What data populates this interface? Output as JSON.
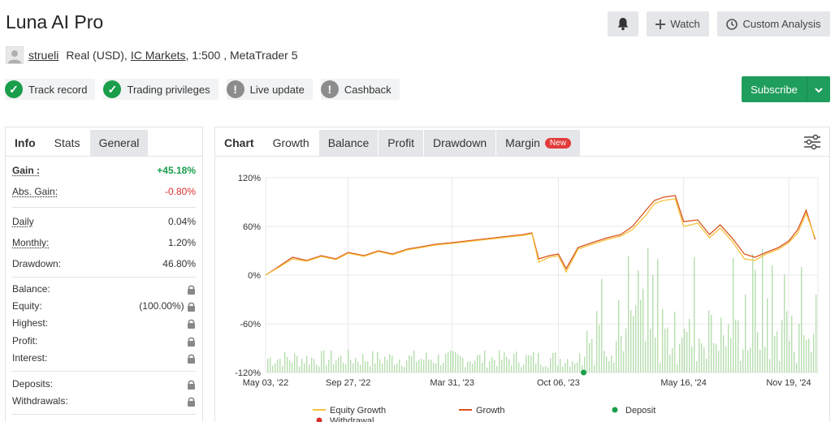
{
  "header": {
    "title": "Luna AI Pro",
    "watch_label": "Watch",
    "custom_analysis_label": "Custom Analysis"
  },
  "account": {
    "user": "strueli",
    "type": "Real (USD),",
    "broker": "IC Markets",
    "details": ", 1:500 , MetaTrader 5"
  },
  "badges": [
    {
      "label": "Track record",
      "status": "ok"
    },
    {
      "label": "Trading privileges",
      "status": "ok"
    },
    {
      "label": "Live update",
      "status": "warn"
    },
    {
      "label": "Cashback",
      "status": "warn"
    }
  ],
  "subscribe_label": "Subscribe",
  "stats_tabs": [
    "Info",
    "Stats",
    "General"
  ],
  "stats": {
    "gain_label": "Gain :",
    "gain_value": "+45.18%",
    "abs_gain_label": "Abs. Gain:",
    "abs_gain_value": "-0.80%",
    "daily_label": "Daily",
    "daily_value": "0.04%",
    "monthly_label": "Monthly:",
    "monthly_value": "1.20%",
    "drawdown_label": "Drawdown:",
    "drawdown_value": "46.80%",
    "balance_label": "Balance:",
    "equity_label": "Equity:",
    "equity_value": "(100.00%)",
    "highest_label": "Highest:",
    "profit_label": "Profit:",
    "interest_label": "Interest:",
    "deposits_label": "Deposits:",
    "withdrawals_label": "Withdrawals:"
  },
  "chart_tabs": {
    "chart": "Chart",
    "growth": "Growth",
    "balance": "Balance",
    "profit": "Profit",
    "drawdown": "Drawdown",
    "margin": "Margin",
    "new_badge": "New"
  },
  "colors": {
    "equity": "#f5c23c",
    "growth": "#d9541e",
    "deposit": "#1a9e4b",
    "withdrawal": "#d9302f",
    "bars": "#a8d8a0"
  },
  "chart_data": {
    "type": "line",
    "title": "",
    "xlabel": "",
    "ylabel": "",
    "ylim": [
      -120,
      120
    ],
    "yticks": [
      "120%",
      "60%",
      "0%",
      "-60%",
      "-120%"
    ],
    "xticks": [
      "May 03, '22",
      "Sep 27, '22",
      "Mar 31, '23",
      "Oct 06, '23",
      "May 16, '24",
      "Nov 19, '24"
    ],
    "legend_position": "bottom",
    "legend": [
      "Equity Growth",
      "Growth",
      "Deposit",
      "Withdrawal"
    ],
    "series": [
      {
        "name": "Growth",
        "x": [
          "2022-05-03",
          "2022-05-25",
          "2022-06-20",
          "2022-07-15",
          "2022-08-10",
          "2022-09-05",
          "2022-09-27",
          "2022-10-25",
          "2022-11-20",
          "2022-12-15",
          "2023-01-10",
          "2023-02-05",
          "2023-03-01",
          "2023-03-31",
          "2023-04-25",
          "2023-05-20",
          "2023-06-15",
          "2023-07-10",
          "2023-08-05",
          "2023-08-20",
          "2023-09-01",
          "2023-09-20",
          "2023-10-06",
          "2023-10-20",
          "2023-11-10",
          "2023-12-05",
          "2024-01-01",
          "2024-01-25",
          "2024-02-15",
          "2024-03-10",
          "2024-03-25",
          "2024-04-10",
          "2024-05-01",
          "2024-05-16",
          "2024-06-10",
          "2024-07-01",
          "2024-07-20",
          "2024-08-10",
          "2024-09-01",
          "2024-09-20",
          "2024-10-10",
          "2024-11-01",
          "2024-11-19",
          "2024-12-05",
          "2024-12-20",
          "2025-01-05"
        ],
        "values": [
          0,
          10,
          22,
          18,
          24,
          20,
          28,
          24,
          30,
          26,
          32,
          35,
          38,
          40,
          42,
          44,
          46,
          48,
          50,
          52,
          20,
          24,
          26,
          8,
          34,
          40,
          46,
          50,
          60,
          80,
          92,
          96,
          98,
          66,
          68,
          50,
          62,
          46,
          26,
          22,
          28,
          34,
          42,
          56,
          80,
          44
        ]
      },
      {
        "name": "Equity Growth",
        "x": [
          "2022-05-03",
          "2022-05-25",
          "2022-06-20",
          "2022-07-15",
          "2022-08-10",
          "2022-09-05",
          "2022-09-27",
          "2022-10-25",
          "2022-11-20",
          "2022-12-15",
          "2023-01-10",
          "2023-02-05",
          "2023-03-01",
          "2023-03-31",
          "2023-04-25",
          "2023-05-20",
          "2023-06-15",
          "2023-07-10",
          "2023-08-05",
          "2023-08-20",
          "2023-09-01",
          "2023-09-20",
          "2023-10-06",
          "2023-10-20",
          "2023-11-10",
          "2023-12-05",
          "2024-01-01",
          "2024-01-25",
          "2024-02-15",
          "2024-03-10",
          "2024-03-25",
          "2024-04-10",
          "2024-05-01",
          "2024-05-16",
          "2024-06-10",
          "2024-07-01",
          "2024-07-20",
          "2024-08-10",
          "2024-09-01",
          "2024-09-20",
          "2024-10-10",
          "2024-11-01",
          "2024-11-19",
          "2024-12-05",
          "2024-12-20",
          "2025-01-05"
        ],
        "values": [
          0,
          9,
          20,
          17,
          23,
          19,
          27,
          23,
          29,
          25,
          31,
          34,
          37,
          39,
          41,
          43,
          45,
          47,
          49,
          51,
          16,
          22,
          24,
          4,
          32,
          38,
          44,
          48,
          56,
          74,
          88,
          92,
          94,
          60,
          64,
          46,
          58,
          42,
          20,
          18,
          26,
          32,
          40,
          52,
          76,
          46
        ]
      }
    ],
    "deposit": {
      "x": "2023-11-20",
      "y": -120
    }
  }
}
